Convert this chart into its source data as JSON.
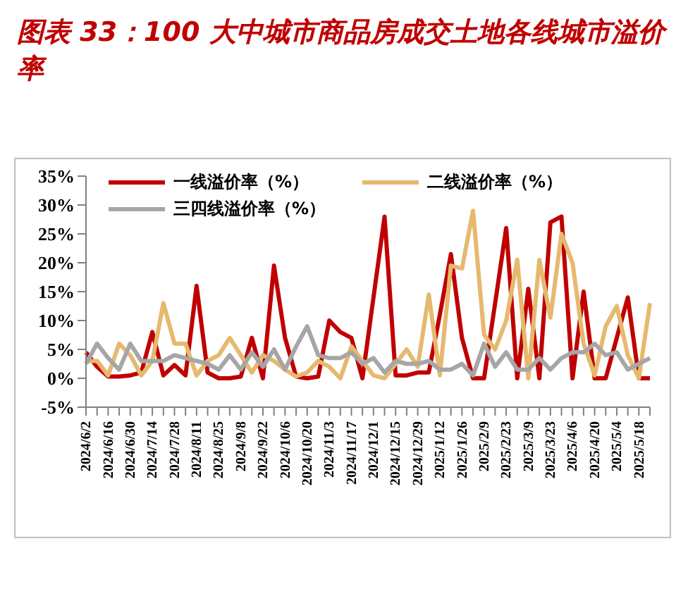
{
  "chart_data": {
    "type": "line",
    "title": "图表 33：100 大中城市商品房成交土地各线城市溢价率",
    "categories": [
      "2024/6/2",
      null,
      "2024/6/16",
      null,
      "2024/6/30",
      null,
      "2024/7/14",
      null,
      "2024/7/28",
      null,
      "2024/8/11",
      null,
      "2024/8/25",
      null,
      "2024/9/8",
      null,
      "2024/9/22",
      null,
      "2024/10/6",
      null,
      "2024/10/20",
      null,
      "2024/11/3",
      null,
      "2024/11/17",
      null,
      "2024/12/1",
      null,
      "2024/12/15",
      null,
      "2024/12/29",
      null,
      "2025/1/12",
      null,
      "2025/1/26",
      null,
      "2025/2/9",
      null,
      "2025/2/23",
      null,
      "2025/3/9",
      null,
      "2025/3/23",
      null,
      "2025/4/6",
      null,
      "2025/4/20",
      null,
      "2025/5/4",
      null,
      "2025/5/18",
      null
    ],
    "series": [
      {
        "name": "一线溢价率（%）",
        "color": "#c00000",
        "values": [
          4.5,
          2,
          0.3,
          0.3,
          0.5,
          1,
          8,
          0.5,
          2.3,
          0.5,
          16,
          1,
          0,
          0,
          0.3,
          7,
          0,
          19.5,
          7,
          0.3,
          0,
          0.3,
          10,
          8,
          7,
          0,
          14,
          28,
          0.5,
          0.5,
          1,
          1,
          11,
          21.5,
          7,
          0,
          0,
          13,
          26,
          0,
          15.5,
          0,
          27,
          28,
          0,
          15,
          0,
          0,
          7,
          14,
          0,
          0
        ]
      },
      {
        "name": "二线溢价率（%）",
        "color": "#e6b96e",
        "values": [
          3,
          3,
          0.5,
          6,
          4,
          0.5,
          3,
          13,
          6,
          6,
          0.5,
          3,
          4,
          7,
          4,
          1,
          4,
          3,
          1.5,
          0.3,
          1,
          3,
          2,
          0,
          5.5,
          3,
          0.5,
          0,
          2.5,
          5,
          2,
          14.5,
          0.5,
          19.5,
          19,
          29,
          7.5,
          5,
          10,
          20.5,
          0,
          20.5,
          10.5,
          25,
          20,
          6,
          0.5,
          9,
          12.5,
          4,
          0,
          13
        ]
      },
      {
        "name": "三四线溢价率（%）",
        "color": "#a6a6a6",
        "values": [
          2.5,
          6,
          3.5,
          1.5,
          6,
          3,
          3,
          3,
          4,
          3.5,
          3,
          2.5,
          1.5,
          4,
          1.5,
          4.5,
          2,
          5,
          1.5,
          5.5,
          9,
          4,
          3.5,
          3.5,
          4.5,
          2.5,
          3.5,
          1,
          3,
          2.5,
          2.5,
          3,
          1.5,
          1.5,
          2.5,
          0.5,
          6,
          2,
          4.5,
          1.5,
          1.5,
          3.5,
          1.5,
          3.5,
          4.5,
          4.5,
          6,
          4,
          4.5,
          1.5,
          2.5,
          3.5
        ]
      }
    ],
    "ylim": [
      -5,
      35
    ],
    "yticks": [
      {
        "value": -5,
        "label": "-5%"
      },
      {
        "value": 0,
        "label": "0%"
      },
      {
        "value": 5,
        "label": "5%"
      },
      {
        "value": 10,
        "label": "10%"
      },
      {
        "value": 15,
        "label": "15%"
      },
      {
        "value": 20,
        "label": "20%"
      },
      {
        "value": 25,
        "label": "25%"
      },
      {
        "value": 30,
        "label": "30%"
      },
      {
        "value": 35,
        "label": "35%"
      }
    ],
    "grid": false,
    "legend": "top",
    "marker": "none",
    "line_style": "solid"
  }
}
